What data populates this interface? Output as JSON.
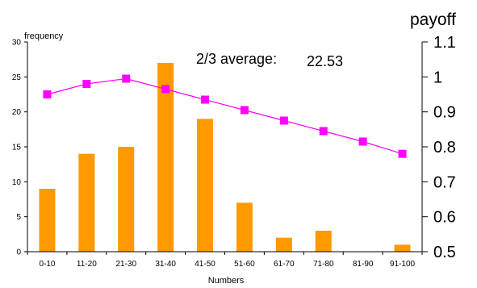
{
  "colors": {
    "bars": "#ff9900",
    "line": "#ff00ff",
    "axis": "#000000"
  },
  "chart_data": {
    "type": "bar+line",
    "x_label": "Numbers",
    "categories": [
      "0-10",
      "11-20",
      "21-30",
      "31-40",
      "41-50",
      "51-60",
      "61-70",
      "71-80",
      "81-90",
      "91-100"
    ],
    "frequency": {
      "axis_title": "frequency",
      "ylim": [
        0,
        30
      ],
      "ticks": [
        "0",
        "5",
        "10",
        "15",
        "20",
        "25",
        "30"
      ],
      "tick_values": [
        0,
        5,
        10,
        15,
        20,
        25,
        30
      ],
      "values": [
        9,
        14,
        15,
        27,
        19,
        7,
        2,
        3,
        0,
        1
      ]
    },
    "payoff": {
      "axis_title": "payoff",
      "ylim": [
        0.5,
        1.1
      ],
      "ticks": [
        "0.5",
        "0.6",
        "0.7",
        "0.8",
        "0.9",
        "1",
        "1.1"
      ],
      "tick_values": [
        0.5,
        0.6,
        0.7,
        0.8,
        0.9,
        1.0,
        1.1
      ],
      "values": [
        0.95,
        0.98,
        0.995,
        0.965,
        0.935,
        0.905,
        0.875,
        0.845,
        0.815,
        0.78
      ]
    },
    "annotation": {
      "label": "2/3 average:",
      "value": "22.53"
    },
    "grid": false,
    "legend": "none"
  }
}
